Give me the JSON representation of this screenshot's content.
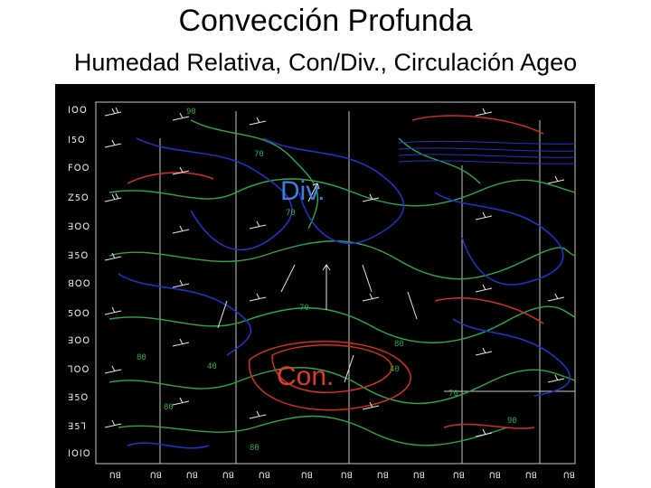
{
  "slide": {
    "title": "Convección Profunda",
    "subtitle": "Humedad Relativa, Con/Div., Circulación Ageo"
  },
  "figure": {
    "labels": {
      "divergence": "Div.",
      "convergence": "Con."
    },
    "colors": {
      "background": "#000000",
      "humidity_contours": "#2aa84a",
      "divergence_contours": "#2233cc",
      "convergence_contours": "#d03020",
      "wind_barbs": "#e6e6e6",
      "grid": "#c8c8c8"
    }
  }
}
